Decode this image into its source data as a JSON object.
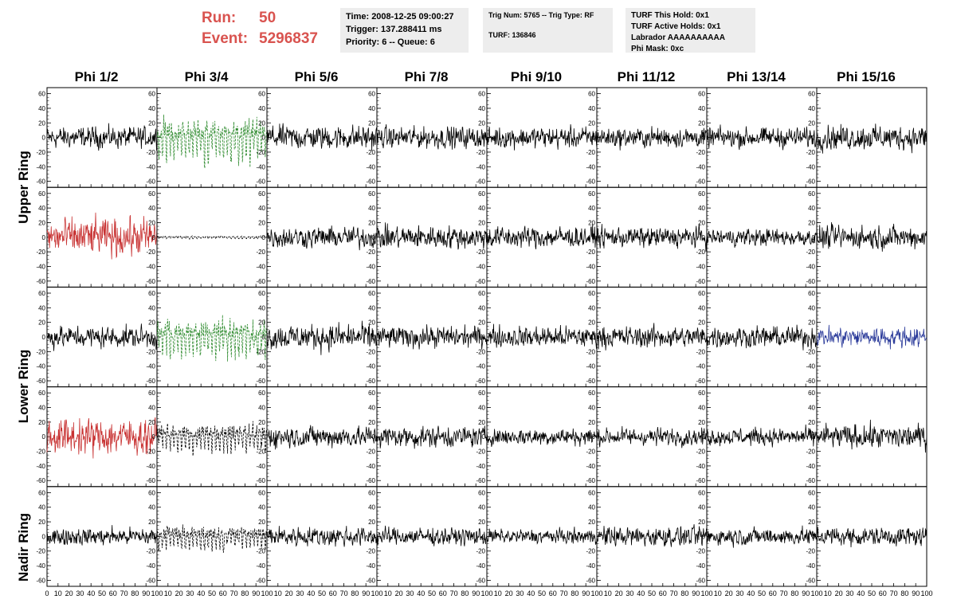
{
  "header": {
    "run_label": "Run:",
    "run_value": "50",
    "event_label": "Event:",
    "event_value": "5296837",
    "run_color": "#d9534f"
  },
  "info_boxes": {
    "time": "Time: 2008-12-25 09:00:27",
    "trigger": "Trigger: 137.288411 ms",
    "priority": "Priority: 6 -- Queue: 6",
    "trig_num": "Trig Num: 5765 -- Trig Type: RF",
    "turf": "TURF: 136846",
    "turf_this_hold": "TURF This Hold: 0x1",
    "turf_active_holds": "TURF Active Holds: 0x1",
    "labrador": "Labrador AAAAAAAAAA",
    "phi_mask": "Phi Mask: 0xc"
  },
  "columns": [
    "Phi 1/2",
    "Phi 3/4",
    "Phi 5/6",
    "Phi 7/8",
    "Phi 9/10",
    "Phi 11/12",
    "Phi 13/14",
    "Phi 15/16"
  ],
  "rings": [
    "Upper Ring",
    "Lower Ring",
    "Nadir Ring"
  ],
  "colors": {
    "black": "#000000",
    "red": "#c83232",
    "green": "#2e8b2e",
    "blue": "#2a3a9a"
  },
  "chart_data": {
    "type": "line",
    "xlim": [
      0,
      100
    ],
    "ylim": [
      -65,
      65
    ],
    "x_ticks": [
      0,
      10,
      20,
      30,
      40,
      50,
      60,
      70,
      80,
      90,
      100
    ],
    "y_ticks": [
      -60,
      -40,
      -20,
      0,
      20,
      40,
      60
    ],
    "panel_rows": 5,
    "panel_cols": 8,
    "panels": [
      [
        {
          "color": "black",
          "amp": 15
        },
        {
          "color": "green",
          "amp": 30,
          "dashed": true
        },
        {
          "color": "black",
          "amp": 17
        },
        {
          "color": "black",
          "amp": 15
        },
        {
          "color": "black",
          "amp": 15
        },
        {
          "color": "black",
          "amp": 14
        },
        {
          "color": "black",
          "amp": 14
        },
        {
          "color": "black",
          "amp": 17
        }
      ],
      [
        {
          "color": "red",
          "amp": 26
        },
        {
          "color": "black",
          "amp": 2,
          "dashed": true
        },
        {
          "color": "black",
          "amp": 15
        },
        {
          "color": "black",
          "amp": 16
        },
        {
          "color": "black",
          "amp": 15
        },
        {
          "color": "black",
          "amp": 14
        },
        {
          "color": "black",
          "amp": 12
        },
        {
          "color": "black",
          "amp": 16
        }
      ],
      [
        {
          "color": "black",
          "amp": 15
        },
        {
          "color": "green",
          "amp": 28,
          "dashed": true
        },
        {
          "color": "black",
          "amp": 18
        },
        {
          "color": "black",
          "amp": 15
        },
        {
          "color": "black",
          "amp": 15
        },
        {
          "color": "black",
          "amp": 15
        },
        {
          "color": "black",
          "amp": 15
        },
        {
          "color": "blue",
          "amp": 14
        }
      ],
      [
        {
          "color": "red",
          "amp": 25
        },
        {
          "color": "black",
          "amp": 20,
          "dashed": true
        },
        {
          "color": "black",
          "amp": 15
        },
        {
          "color": "black",
          "amp": 15
        },
        {
          "color": "black",
          "amp": 12
        },
        {
          "color": "black",
          "amp": 12
        },
        {
          "color": "black",
          "amp": 12
        },
        {
          "color": "black",
          "amp": 17
        }
      ],
      [
        {
          "color": "black",
          "amp": 12
        },
        {
          "color": "black",
          "amp": 18,
          "dashed": true
        },
        {
          "color": "black",
          "amp": 14
        },
        {
          "color": "black",
          "amp": 12
        },
        {
          "color": "black",
          "amp": 10
        },
        {
          "color": "black",
          "amp": 14
        },
        {
          "color": "black",
          "amp": 12
        },
        {
          "color": "black",
          "amp": 13
        }
      ]
    ]
  }
}
